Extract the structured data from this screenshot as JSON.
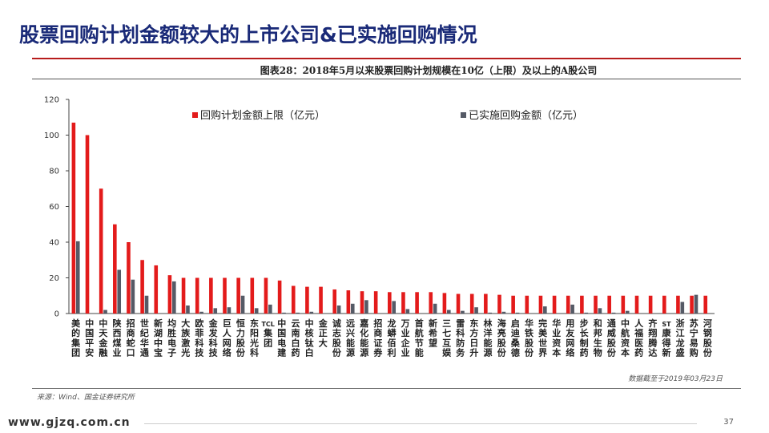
{
  "page": {
    "title": "股票回购计划金额较大的上市公司&已实施回购情况",
    "figure_caption": "图表28：2018年5月以来股票回购计划规模在10亿（上限）及以上的A股公司",
    "data_cutoff": "数据截至于2019年03月23日",
    "source": "来源：Wind、国金证券研究所",
    "footer_url": "www.gjzq.com.cn",
    "page_number": "37"
  },
  "colors": {
    "plan": "#e31b1b",
    "done": "#555a66",
    "title": "#1a2a78",
    "rule": "#b71c1c"
  },
  "chart_data": {
    "type": "bar",
    "ylim": [
      0,
      120
    ],
    "yticks": [
      0,
      20,
      40,
      60,
      80,
      100,
      120
    ],
    "legend_position": "top",
    "categories": [
      "美的集团",
      "中国平安",
      "中天金融",
      "陕西煤业",
      "招商蛇口",
      "世纪华通",
      "新湖中宝",
      "均胜电子",
      "大族激光",
      "欧菲科技",
      "金发科技",
      "巨人网络",
      "恒力股份",
      "东阳光科",
      "TCL集团",
      "中国电建",
      "云南白药",
      "中核钛白",
      "金正大",
      "诚志股份",
      "远兴能源",
      "嘉化能源",
      "招商证券",
      "龙蟒佰利",
      "万业企业",
      "首航节能",
      "新希望",
      "三七互娱",
      "雷科防务",
      "东方日升",
      "林洋能源",
      "海亮股份",
      "启迪桑德",
      "华铁股份",
      "完美世界",
      "华业资本",
      "用友网络",
      "步长制药",
      "和邦生物",
      "通威股份",
      "中航资本",
      "人福医药",
      "齐翔腾达",
      "ST康得新",
      "浙江龙盛",
      "苏宁易购",
      "河钢股份"
    ],
    "series": [
      {
        "name": "回购计划金额上限（亿元）",
        "values": [
          107,
          100,
          70,
          50,
          40,
          30,
          27,
          21.5,
          20,
          20,
          20,
          20,
          20,
          20,
          20,
          18.5,
          15.5,
          15,
          15,
          13.5,
          13,
          12.5,
          12.5,
          12,
          12,
          12,
          12,
          11.5,
          11,
          11,
          11,
          10.5,
          10,
          10,
          10,
          10,
          10,
          10,
          10,
          10,
          10,
          10,
          10,
          10,
          10,
          10,
          10
        ]
      },
      {
        "name": "已实施回购金额（亿元）",
        "values": [
          40.5,
          0,
          2,
          24.5,
          19,
          10,
          0,
          18,
          4.5,
          1,
          3,
          3.5,
          10,
          3,
          5,
          0.5,
          0.5,
          1,
          0,
          4.5,
          5.5,
          7.5,
          0,
          7,
          2.5,
          0,
          5.5,
          2,
          1.5,
          3.5,
          0.5,
          1,
          0.5,
          0,
          4,
          0,
          5,
          0.5,
          3,
          0.5,
          1.5,
          0,
          0,
          0,
          6.5,
          10.5,
          0
        ]
      }
    ]
  }
}
